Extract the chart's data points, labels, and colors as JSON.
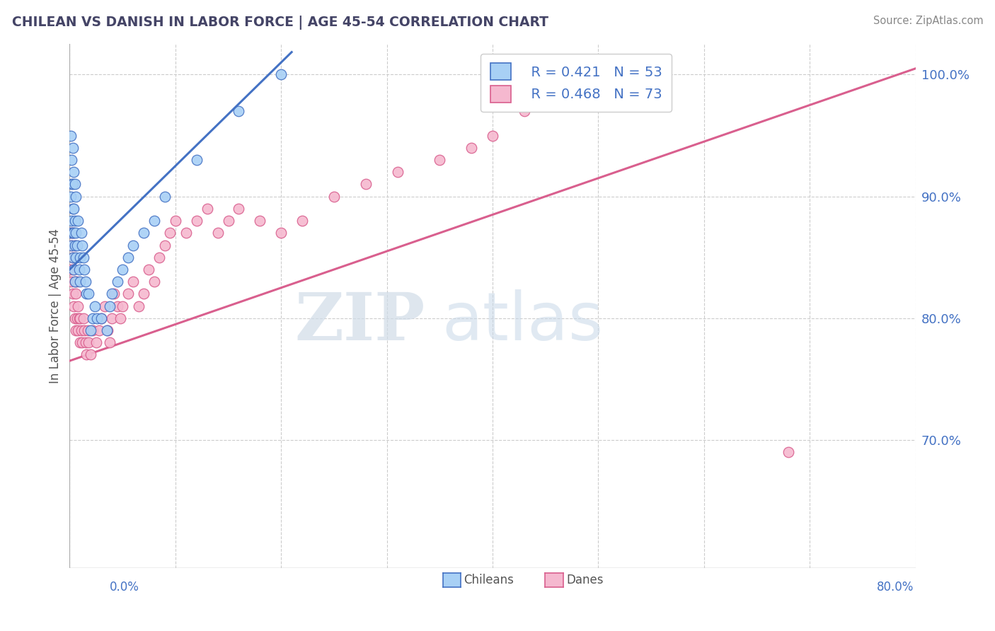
{
  "title": "CHILEAN VS DANISH IN LABOR FORCE | AGE 45-54 CORRELATION CHART",
  "source": "Source: ZipAtlas.com",
  "ylabel": "In Labor Force | Age 45-54",
  "xmin": 0.0,
  "xmax": 0.8,
  "ymin": 0.595,
  "ymax": 1.025,
  "ytick_labels": [
    "70.0%",
    "80.0%",
    "90.0%",
    "100.0%"
  ],
  "ytick_positions": [
    0.7,
    0.8,
    0.9,
    1.0
  ],
  "legend_r_chileans": "R = 0.421",
  "legend_n_chileans": "N = 53",
  "legend_r_danes": "R = 0.468",
  "legend_n_danes": "N = 73",
  "color_chileans": "#A8D0F5",
  "color_danes": "#F5B8CF",
  "color_line_chileans": "#4472C4",
  "color_line_danes": "#D95F8E",
  "color_text_blue": "#4472C4",
  "watermark_zip": "ZIP",
  "watermark_atlas": "atlas",
  "background_color": "#FFFFFF",
  "chileans_x": [
    0.001,
    0.001,
    0.001,
    0.002,
    0.002,
    0.002,
    0.002,
    0.003,
    0.003,
    0.003,
    0.003,
    0.003,
    0.004,
    0.004,
    0.004,
    0.004,
    0.005,
    0.005,
    0.005,
    0.005,
    0.006,
    0.006,
    0.006,
    0.007,
    0.008,
    0.009,
    0.01,
    0.01,
    0.011,
    0.012,
    0.013,
    0.014,
    0.015,
    0.016,
    0.018,
    0.02,
    0.022,
    0.024,
    0.026,
    0.03,
    0.035,
    0.038,
    0.04,
    0.045,
    0.05,
    0.055,
    0.06,
    0.07,
    0.08,
    0.09,
    0.12,
    0.16,
    0.2
  ],
  "chileans_y": [
    0.87,
    0.9,
    0.95,
    0.86,
    0.88,
    0.91,
    0.93,
    0.85,
    0.87,
    0.89,
    0.91,
    0.94,
    0.84,
    0.87,
    0.89,
    0.92,
    0.83,
    0.86,
    0.88,
    0.91,
    0.85,
    0.87,
    0.9,
    0.86,
    0.88,
    0.84,
    0.83,
    0.85,
    0.87,
    0.86,
    0.85,
    0.84,
    0.83,
    0.82,
    0.82,
    0.79,
    0.8,
    0.81,
    0.8,
    0.8,
    0.79,
    0.81,
    0.82,
    0.83,
    0.84,
    0.85,
    0.86,
    0.87,
    0.88,
    0.9,
    0.93,
    0.97,
    1.0
  ],
  "danes_x": [
    0.001,
    0.001,
    0.002,
    0.002,
    0.003,
    0.003,
    0.003,
    0.004,
    0.004,
    0.005,
    0.005,
    0.005,
    0.006,
    0.006,
    0.007,
    0.007,
    0.008,
    0.008,
    0.009,
    0.01,
    0.01,
    0.011,
    0.012,
    0.013,
    0.014,
    0.015,
    0.016,
    0.017,
    0.018,
    0.02,
    0.022,
    0.025,
    0.028,
    0.03,
    0.033,
    0.036,
    0.038,
    0.04,
    0.042,
    0.045,
    0.048,
    0.05,
    0.055,
    0.06,
    0.065,
    0.07,
    0.075,
    0.08,
    0.085,
    0.09,
    0.095,
    0.1,
    0.11,
    0.12,
    0.13,
    0.14,
    0.15,
    0.16,
    0.18,
    0.2,
    0.22,
    0.25,
    0.28,
    0.31,
    0.35,
    0.38,
    0.4,
    0.43,
    0.46,
    0.49,
    0.52,
    0.55,
    0.68
  ],
  "danes_y": [
    0.84,
    0.87,
    0.83,
    0.86,
    0.82,
    0.85,
    0.87,
    0.81,
    0.84,
    0.8,
    0.83,
    0.86,
    0.79,
    0.82,
    0.8,
    0.83,
    0.79,
    0.81,
    0.8,
    0.78,
    0.8,
    0.79,
    0.78,
    0.8,
    0.79,
    0.78,
    0.77,
    0.79,
    0.78,
    0.77,
    0.79,
    0.78,
    0.79,
    0.8,
    0.81,
    0.79,
    0.78,
    0.8,
    0.82,
    0.81,
    0.8,
    0.81,
    0.82,
    0.83,
    0.81,
    0.82,
    0.84,
    0.83,
    0.85,
    0.86,
    0.87,
    0.88,
    0.87,
    0.88,
    0.89,
    0.87,
    0.88,
    0.89,
    0.88,
    0.87,
    0.88,
    0.9,
    0.91,
    0.92,
    0.93,
    0.94,
    0.95,
    0.97,
    0.99,
    1.0,
    1.0,
    1.0,
    0.69
  ],
  "chileans_line_x": [
    0.0,
    0.2
  ],
  "chileans_line_y_intercept": 0.84,
  "chileans_line_slope": 0.85,
  "danes_line_x": [
    0.0,
    0.8
  ],
  "danes_line_y_intercept": 0.765,
  "danes_line_slope": 0.3
}
